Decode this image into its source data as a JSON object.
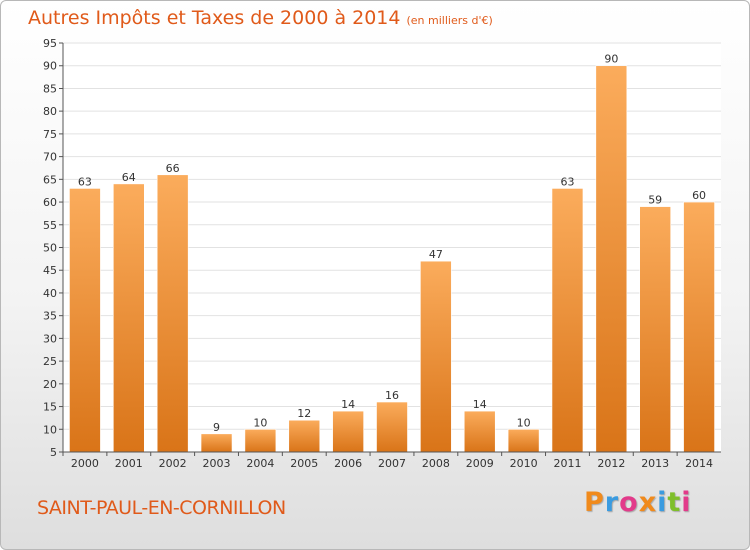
{
  "header": {
    "title": "Autres Impôts et Taxes de 2000 à 2014",
    "unit": "(en milliers d'€)"
  },
  "commune": "SAINT-PAUL-EN-CORNILLON",
  "logo": {
    "text": "Proxiti",
    "colors": [
      "#f08a1c",
      "#3a9be0",
      "#e23a8a",
      "#f08a1c",
      "#3a9be0",
      "#7fbf2a",
      "#e23a8a"
    ]
  },
  "colors": {
    "bar_light": "#fbac5c",
    "bar_dark": "#d97418",
    "grid": "#e2e2e2",
    "accent": "#e05a1a"
  },
  "chart_data": {
    "type": "bar",
    "title": "Autres Impôts et Taxes de 2000 à 2014",
    "subtitle": "(en milliers d'€)",
    "categories": [
      "2000",
      "2001",
      "2002",
      "2003",
      "2004",
      "2005",
      "2006",
      "2007",
      "2008",
      "2009",
      "2010",
      "2011",
      "2012",
      "2013",
      "2014"
    ],
    "values": [
      63,
      64,
      66,
      9,
      10,
      12,
      14,
      16,
      47,
      14,
      10,
      63,
      90,
      59,
      60
    ],
    "ylim": [
      5,
      95
    ],
    "yticks": [
      5,
      10,
      15,
      20,
      25,
      30,
      35,
      40,
      45,
      50,
      55,
      60,
      65,
      70,
      75,
      80,
      85,
      90,
      95
    ],
    "grid": true
  }
}
